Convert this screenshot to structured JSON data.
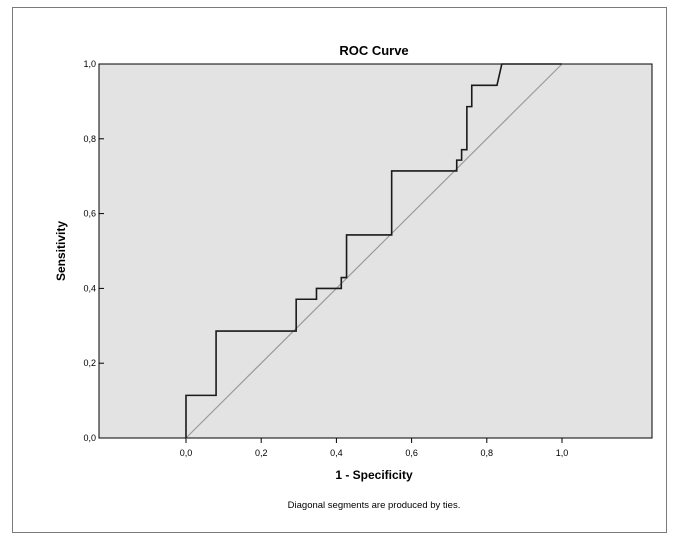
{
  "chart_data": {
    "type": "line",
    "title": "ROC Curve",
    "xlabel": "1 - Specificity",
    "ylabel": "Sensitivity",
    "footnote": "Diagonal segments are produced by ties.",
    "xlim": [
      0,
      1
    ],
    "ylim": [
      0,
      1
    ],
    "x_ticks": [
      "0,0",
      "0,2",
      "0,4",
      "0,6",
      "0,8",
      "1,0"
    ],
    "y_ticks": [
      "0,0",
      "0,2",
      "0,4",
      "0,6",
      "0,8",
      "1,0"
    ],
    "grid": false,
    "colors": {
      "plot_bg": "#e3e3e3",
      "curve": "#1a1a1a",
      "reference": "#9a9a9a"
    },
    "series": [
      {
        "values": [
          [
            0.0,
            0.0
          ],
          [
            0.0,
            0.114
          ],
          [
            0.08,
            0.114
          ],
          [
            0.08,
            0.286
          ],
          [
            0.293,
            0.286
          ],
          [
            0.293,
            0.371
          ],
          [
            0.347,
            0.371
          ],
          [
            0.347,
            0.4
          ],
          [
            0.413,
            0.4
          ],
          [
            0.413,
            0.429
          ],
          [
            0.427,
            0.429
          ],
          [
            0.427,
            0.543
          ],
          [
            0.547,
            0.543
          ],
          [
            0.547,
            0.714
          ],
          [
            0.72,
            0.714
          ],
          [
            0.72,
            0.743
          ],
          [
            0.733,
            0.743
          ],
          [
            0.733,
            0.771
          ],
          [
            0.747,
            0.771
          ],
          [
            0.747,
            0.886
          ],
          [
            0.76,
            0.886
          ],
          [
            0.76,
            0.943
          ],
          [
            0.827,
            0.943
          ],
          [
            0.84,
            1.0
          ],
          [
            1.0,
            1.0
          ]
        ]
      },
      {
        "values": [
          [
            0,
            0
          ],
          [
            1,
            1
          ]
        ]
      }
    ]
  }
}
